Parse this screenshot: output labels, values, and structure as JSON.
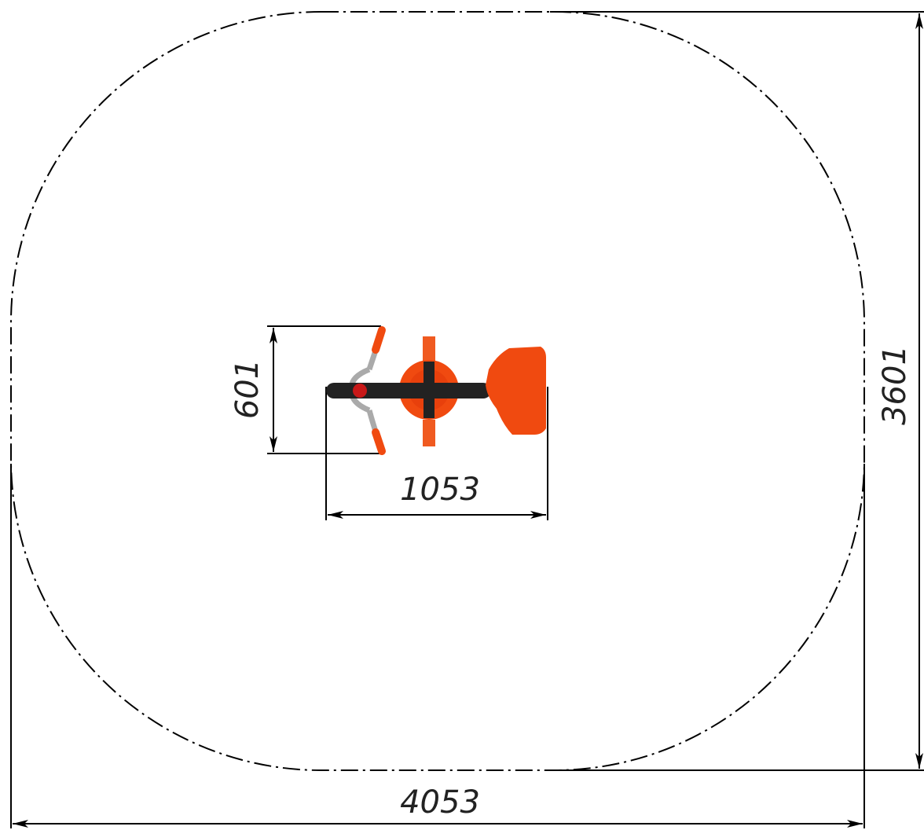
{
  "dimensions": {
    "overall_width": "4053",
    "overall_length": "3601",
    "equipment_width": "601",
    "equipment_length": "1053"
  }
}
